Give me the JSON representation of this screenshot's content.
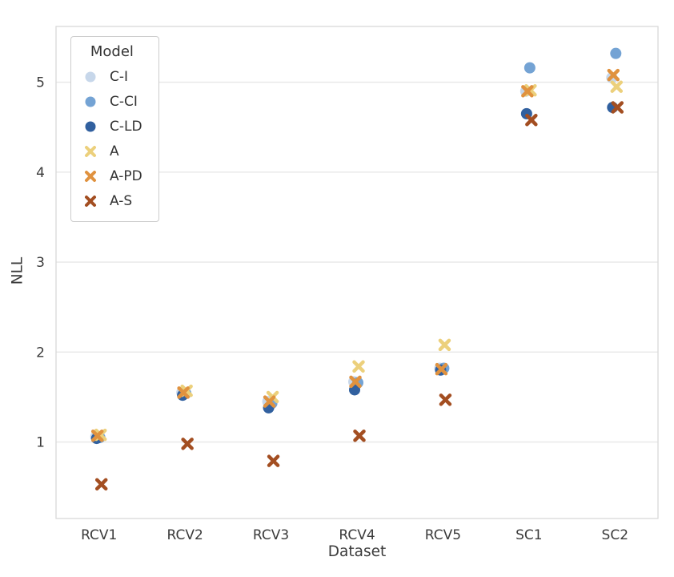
{
  "chart_data": {
    "type": "scatter",
    "title": "",
    "xlabel": "Dataset",
    "ylabel": "NLL",
    "legend_title": "Model",
    "legend_position": "upper left",
    "grid": "horizontal",
    "categories": [
      "RCV1",
      "RCV2",
      "RCV3",
      "RCV4",
      "RCV5",
      "SC1",
      "SC2"
    ],
    "yticks": [
      1,
      2,
      3,
      4,
      5
    ],
    "ylim": [
      0.15,
      5.62
    ],
    "series": [
      {
        "name": "C-I",
        "marker": "circle",
        "color": "#c7d7ea",
        "values": [
          1.06,
          1.55,
          1.45,
          1.67,
          1.82,
          4.9,
          5.05
        ]
      },
      {
        "name": "C-CI",
        "marker": "circle",
        "color": "#74a3d4",
        "values": [
          1.05,
          1.54,
          1.43,
          1.66,
          1.82,
          5.16,
          5.32
        ]
      },
      {
        "name": "C-LD",
        "marker": "circle",
        "color": "#31609f",
        "values": [
          1.04,
          1.52,
          1.38,
          1.58,
          1.8,
          4.65,
          4.72
        ]
      },
      {
        "name": "A",
        "marker": "x",
        "color": "#ecd07c",
        "values": [
          1.08,
          1.57,
          1.5,
          1.84,
          2.08,
          4.91,
          4.95
        ]
      },
      {
        "name": "A-PD",
        "marker": "x",
        "color": "#e0923f",
        "values": [
          1.07,
          1.55,
          1.45,
          1.67,
          1.81,
          4.9,
          5.08
        ]
      },
      {
        "name": "A-S",
        "marker": "x",
        "color": "#a34e21",
        "values": [
          0.53,
          0.98,
          0.79,
          1.07,
          1.47,
          4.58,
          4.72
        ]
      }
    ]
  }
}
